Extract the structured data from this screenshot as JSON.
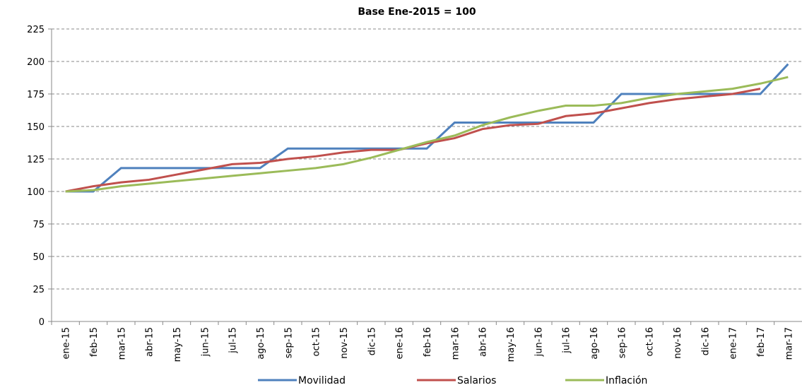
{
  "chart_data": {
    "type": "line",
    "title": "Base Ene-2015 = 100",
    "categories": [
      "ene-15",
      "feb-15",
      "mar-15",
      "abr-15",
      "may-15",
      "jun-15",
      "jul-15",
      "ago-15",
      "sep-15",
      "oct-15",
      "nov-15",
      "dic-15",
      "ene-16",
      "feb-16",
      "mar-16",
      "abr-16",
      "may-16",
      "jun-16",
      "jul-16",
      "ago-16",
      "sep-16",
      "oct-16",
      "nov-16",
      "dic-16",
      "ene-17",
      "feb-17",
      "mar-17"
    ],
    "series": [
      {
        "name": "Movilidad",
        "color": "#4f81bd",
        "values": [
          100,
          100,
          118,
          118,
          118,
          118,
          118,
          118,
          133,
          133,
          133,
          133,
          133,
          133,
          153,
          153,
          153,
          153,
          153,
          153,
          175,
          175,
          175,
          175,
          175,
          175,
          198
        ]
      },
      {
        "name": "Salarios",
        "color": "#c0504d",
        "values": [
          100,
          104,
          107,
          109,
          113,
          117,
          121,
          122,
          125,
          127,
          130,
          132,
          132,
          137,
          141,
          148,
          151,
          152,
          158,
          160,
          164,
          168,
          171,
          173,
          175,
          179,
          null
        ]
      },
      {
        "name": "Inflación",
        "color": "#9bbb59",
        "values": [
          100,
          101,
          104,
          106,
          108,
          110,
          112,
          114,
          116,
          118,
          121,
          126,
          132,
          138,
          143,
          151,
          157,
          162,
          166,
          166,
          168,
          172,
          175,
          177,
          179,
          183,
          188
        ]
      }
    ],
    "ylim": [
      0,
      225
    ],
    "yticks": [
      0,
      25,
      50,
      75,
      100,
      125,
      150,
      175,
      200,
      225
    ],
    "grid": true,
    "legend": "bottom"
  }
}
